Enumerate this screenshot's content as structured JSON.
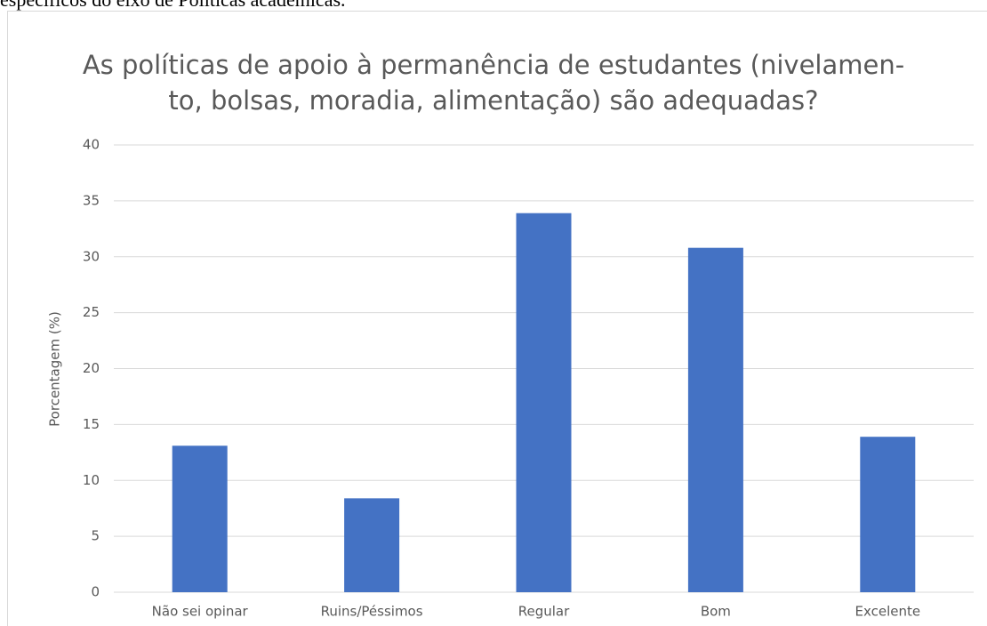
{
  "text_above": "específicos do eixo de Políticas acadêmicas.",
  "chart_data": {
    "type": "bar",
    "title": [
      "As políticas de apoio à permanência de estudantes (nivelamen-",
      "to, bolsas, moradia, alimentação) são adequadas?"
    ],
    "y_label": "Porcentagem (%)",
    "categories": [
      "Não sei opinar",
      "Ruins/Péssimos",
      "Regular",
      "Bom",
      "Excelente"
    ],
    "values": [
      13.1,
      8.4,
      33.9,
      30.8,
      13.9
    ],
    "color": "#4472c4",
    "ylim": [
      0,
      40
    ],
    "yticks": [
      0,
      5,
      10,
      15,
      20,
      25,
      30,
      35,
      40
    ],
    "grid": true
  }
}
